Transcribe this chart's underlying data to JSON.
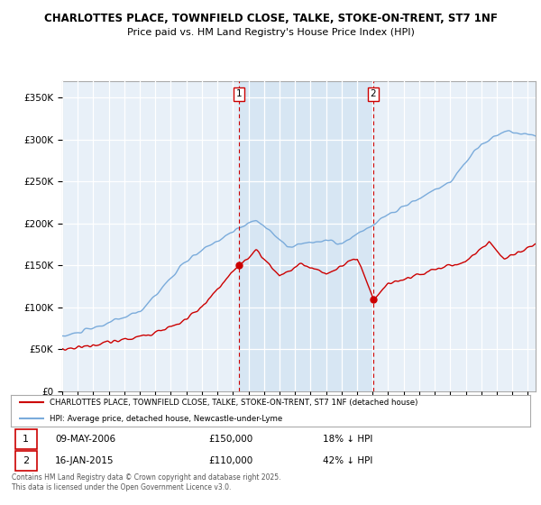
{
  "title": "CHARLOTTES PLACE, TOWNFIELD CLOSE, TALKE, STOKE-ON-TRENT, ST7 1NF",
  "subtitle": "Price paid vs. HM Land Registry's House Price Index (HPI)",
  "ylabel_ticks": [
    "£0",
    "£50K",
    "£100K",
    "£150K",
    "£200K",
    "£250K",
    "£300K",
    "£350K"
  ],
  "ytick_values": [
    0,
    50000,
    100000,
    150000,
    200000,
    250000,
    300000,
    350000
  ],
  "ylim": [
    0,
    370000
  ],
  "xlim_start": 1995.0,
  "xlim_end": 2025.5,
  "hpi_color": "#7aabdb",
  "price_color": "#cc0000",
  "marker1_date": 2006.37,
  "marker1_price": 150000,
  "marker1_label": "1",
  "marker2_date": 2015.04,
  "marker2_price": 110000,
  "marker2_label": "2",
  "legend_line1": "CHARLOTTES PLACE, TOWNFIELD CLOSE, TALKE, STOKE-ON-TRENT, ST7 1NF (detached house)",
  "legend_line2": "HPI: Average price, detached house, Newcastle-under-Lyme",
  "annotation1_date": "09-MAY-2006",
  "annotation1_price": "£150,000",
  "annotation1_hpi": "18% ↓ HPI",
  "annotation2_date": "16-JAN-2015",
  "annotation2_price": "£110,000",
  "annotation2_hpi": "42% ↓ HPI",
  "footer": "Contains HM Land Registry data © Crown copyright and database right 2025.\nThis data is licensed under the Open Government Licence v3.0.",
  "plot_bg_color": "#e8f0f8",
  "fig_bg_color": "#ffffff",
  "grid_color": "#ffffff",
  "span_color": "#cce0f0",
  "span_alpha": 0.6
}
